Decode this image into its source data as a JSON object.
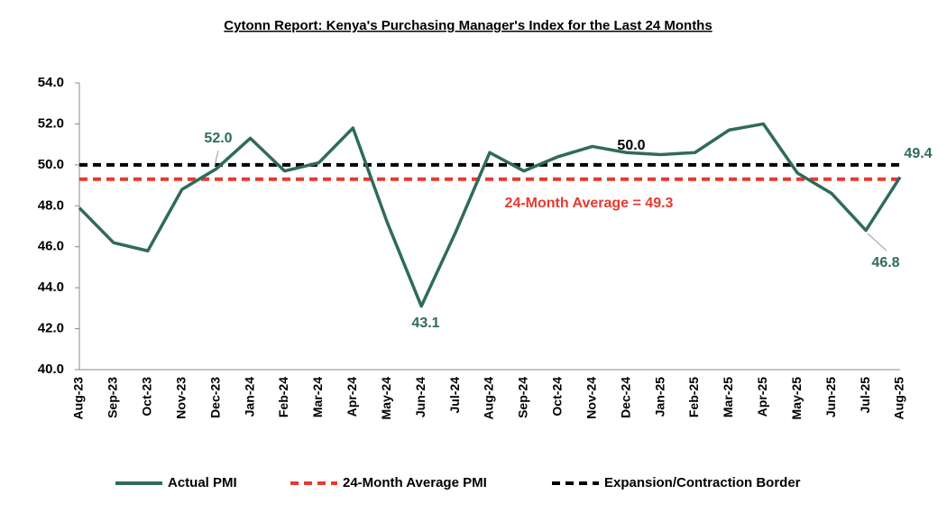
{
  "chart_data": {
    "type": "line",
    "title": "Cytonn Report: Kenya's Purchasing Manager's Index for the Last 24 Months",
    "categories": [
      "Aug-23",
      "Sep-23",
      "Oct-23",
      "Nov-23",
      "Dec-23",
      "Jan-24",
      "Feb-24",
      "Mar-24",
      "Apr-24",
      "May-24",
      "Jun-24",
      "Jul-24",
      "Aug-24",
      "Sep-24",
      "Oct-24",
      "Nov-24",
      "Dec-24",
      "Jan-25",
      "Feb-25",
      "Mar-25",
      "Apr-25",
      "May-25",
      "Jun-25",
      "Jul-25",
      "Aug-25"
    ],
    "series": [
      {
        "name": "Actual PMI",
        "color": "#2f6b5a",
        "values": [
          47.9,
          46.2,
          45.8,
          48.8,
          49.8,
          51.3,
          49.7,
          50.1,
          51.8,
          47.2,
          43.1,
          46.7,
          50.6,
          49.7,
          50.4,
          50.9,
          50.6,
          50.5,
          50.6,
          51.7,
          52.0,
          49.6,
          48.6,
          46.8,
          49.4
        ]
      }
    ],
    "reference_lines": [
      {
        "name": "24-Month Average PMI",
        "value": 49.3,
        "color": "#e8392e"
      },
      {
        "name": "Expansion/Contraction Border",
        "value": 50,
        "color": "#000000"
      }
    ],
    "annotations": [
      {
        "text": "52.0",
        "color": "#2f6b5a"
      },
      {
        "text": "50.0",
        "color": "#000000"
      },
      {
        "text": "43.1",
        "color": "#2f6b5a"
      },
      {
        "text": "46.8",
        "color": "#2f6b5a"
      },
      {
        "text": "49.4",
        "color": "#2f6b5a"
      },
      {
        "text": "24-Month Average = 49.3",
        "color": "#e8392e"
      }
    ],
    "ylim": [
      40,
      54
    ],
    "yticks": [
      {
        "value": 40,
        "label": "40.0"
      },
      {
        "value": 42,
        "label": "42.0"
      },
      {
        "value": 44,
        "label": "44.0"
      },
      {
        "value": 46,
        "label": "46.0"
      },
      {
        "value": 48,
        "label": "48.0"
      },
      {
        "value": 50,
        "label": "50.0"
      },
      {
        "value": 52,
        "label": "52.0"
      },
      {
        "value": 54,
        "label": "54.0"
      }
    ],
    "legend": "bottom"
  }
}
